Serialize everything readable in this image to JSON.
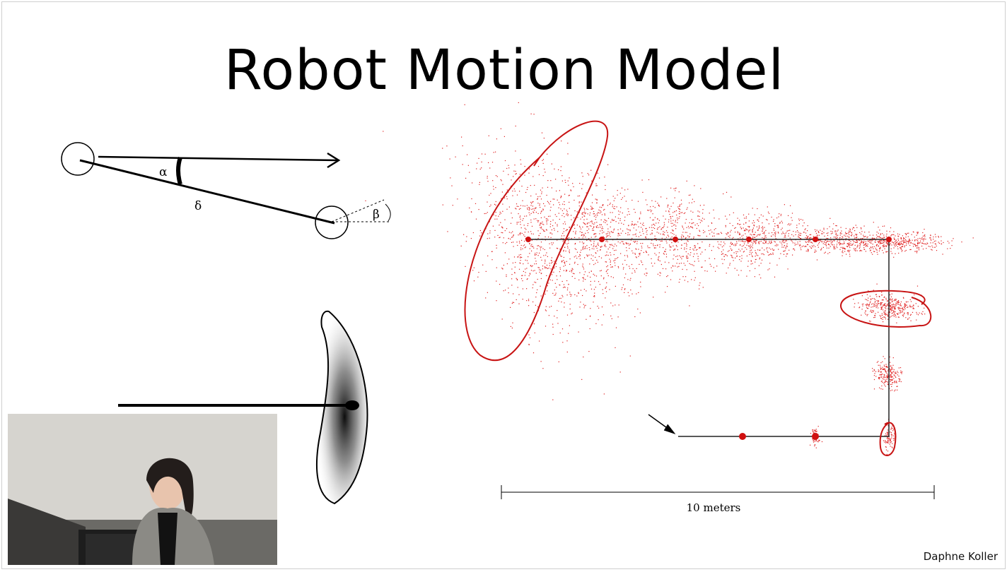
{
  "slide": {
    "title": "Robot Motion Model",
    "credit": "Daphne Koller"
  },
  "motion_diagram": {
    "alpha": "α",
    "delta": "δ",
    "beta": "β"
  },
  "scatter_figure": {
    "scale_label": "10 meters"
  },
  "colors": {
    "particles": "#e02020",
    "annotation": "#c81414",
    "path": "#222222"
  },
  "webcam": {
    "description_icon": "presenter-video-icon"
  }
}
